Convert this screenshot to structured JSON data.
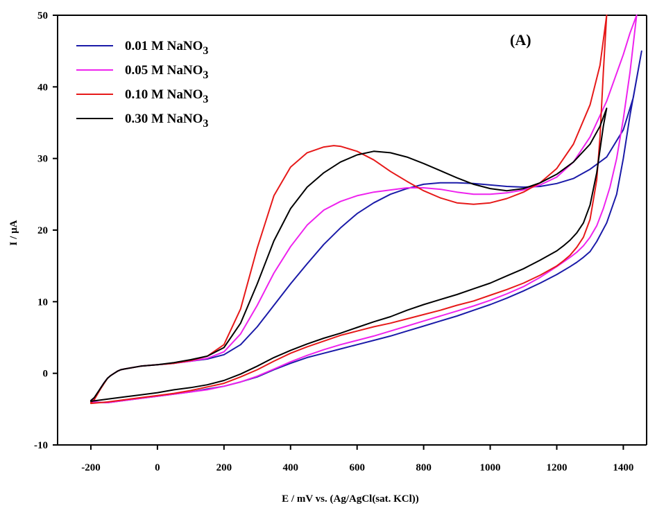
{
  "chart_data": {
    "type": "line",
    "title": "",
    "panel_label": "(A)",
    "xlabel": "E / mV vs. (Ag/AgCl(sat. KCl))",
    "ylabel": "I / µA",
    "xlim": [
      -300,
      1470
    ],
    "ylim": [
      -10,
      50
    ],
    "xticks": [
      -200,
      0,
      200,
      400,
      600,
      800,
      1000,
      1200,
      1400
    ],
    "yticks": [
      -10,
      0,
      10,
      20,
      30,
      40,
      50
    ],
    "grid": false,
    "legend_position": "top-left",
    "series": [
      {
        "name_main": "0.01 M NaNO",
        "name_sub": "3",
        "color": "#1a1aa8",
        "x": [
          -100,
          -50,
          0,
          50,
          100,
          150,
          200,
          250,
          300,
          350,
          400,
          450,
          500,
          550,
          600,
          650,
          700,
          750,
          800,
          850,
          900,
          950,
          1000,
          1050,
          1100,
          1150,
          1200,
          1250,
          1300,
          1350,
          1400,
          1430,
          1455,
          1455,
          1420,
          1400,
          1380,
          1350,
          1320,
          1300,
          1280,
          1260,
          1240,
          1200,
          1150,
          1100,
          1050,
          1000,
          950,
          900,
          850,
          800,
          750,
          700,
          650,
          600,
          550,
          500,
          450,
          400,
          350,
          300,
          250,
          200,
          150,
          100,
          50,
          0,
          -50,
          -100,
          -150,
          -200,
          -200,
          -190,
          -180,
          -170,
          -160,
          -150,
          -140,
          -130,
          -120,
          -110,
          -100
        ],
        "y": [
          0.6,
          1.0,
          1.2,
          1.4,
          1.7,
          2.0,
          2.6,
          4.0,
          6.5,
          9.5,
          12.5,
          15.3,
          18.0,
          20.3,
          22.3,
          23.8,
          25.0,
          25.8,
          26.4,
          26.6,
          26.6,
          26.5,
          26.3,
          26.1,
          26.0,
          26.1,
          26.5,
          27.2,
          28.5,
          30.2,
          34.0,
          38.5,
          45.0,
          45.0,
          36.0,
          30.0,
          25.0,
          21.0,
          18.4,
          17.0,
          16.2,
          15.5,
          14.9,
          13.8,
          12.6,
          11.5,
          10.5,
          9.6,
          8.8,
          8.0,
          7.3,
          6.6,
          5.9,
          5.2,
          4.6,
          4.0,
          3.4,
          2.8,
          2.2,
          1.4,
          0.5,
          -0.5,
          -1.2,
          -1.8,
          -2.2,
          -2.6,
          -2.9,
          -3.2,
          -3.5,
          -3.8,
          -4.1,
          -4.0,
          -4.0,
          -3.6,
          -2.8,
          -2.0,
          -1.3,
          -0.7,
          -0.3,
          0.0,
          0.3,
          0.5,
          0.6
        ]
      },
      {
        "name_main": "0.05 M NaNO",
        "name_sub": "3",
        "color": "#ee22ee",
        "x": [
          -100,
          -50,
          0,
          50,
          100,
          150,
          200,
          250,
          300,
          350,
          400,
          450,
          500,
          550,
          600,
          650,
          700,
          750,
          800,
          850,
          900,
          950,
          1000,
          1050,
          1100,
          1150,
          1200,
          1250,
          1300,
          1350,
          1400,
          1420,
          1440,
          1440,
          1420,
          1400,
          1380,
          1360,
          1340,
          1320,
          1300,
          1280,
          1260,
          1240,
          1200,
          1150,
          1100,
          1050,
          1000,
          950,
          900,
          850,
          800,
          750,
          700,
          650,
          600,
          550,
          500,
          450,
          400,
          350,
          300,
          250,
          200,
          150,
          100,
          50,
          0,
          -50,
          -100,
          -150,
          -200,
          -200,
          -190,
          -180,
          -170,
          -160,
          -150,
          -140,
          -130,
          -120,
          -110,
          -100
        ],
        "y": [
          0.6,
          1.0,
          1.2,
          1.4,
          1.7,
          2.1,
          3.0,
          5.5,
          9.5,
          14.0,
          17.7,
          20.7,
          22.8,
          24.0,
          24.8,
          25.3,
          25.6,
          25.9,
          25.9,
          25.7,
          25.3,
          25.0,
          25.0,
          25.2,
          25.6,
          26.3,
          27.4,
          29.5,
          33.0,
          38.0,
          44.5,
          47.5,
          50.0,
          50.0,
          42.0,
          35.5,
          30.0,
          26.0,
          23.0,
          20.6,
          19.0,
          17.8,
          16.9,
          16.2,
          14.9,
          13.4,
          12.1,
          11.1,
          10.2,
          9.4,
          8.7,
          8.0,
          7.3,
          6.6,
          5.9,
          5.2,
          4.6,
          4.0,
          3.3,
          2.5,
          1.6,
          0.6,
          -0.4,
          -1.2,
          -1.8,
          -2.3,
          -2.6,
          -2.9,
          -3.2,
          -3.5,
          -3.8,
          -4.1,
          -4.0,
          -4.0,
          -3.6,
          -2.8,
          -2.0,
          -1.3,
          -0.7,
          -0.3,
          0.0,
          0.3,
          0.5,
          0.6
        ]
      },
      {
        "name_main": "0.10 M NaNO",
        "name_sub": "3",
        "color": "#e61919",
        "x": [
          -100,
          -50,
          0,
          50,
          100,
          150,
          200,
          250,
          300,
          350,
          400,
          450,
          500,
          530,
          550,
          600,
          650,
          700,
          750,
          800,
          850,
          900,
          950,
          1000,
          1050,
          1100,
          1150,
          1200,
          1250,
          1300,
          1330,
          1350,
          1350,
          1340,
          1330,
          1320,
          1300,
          1280,
          1260,
          1240,
          1220,
          1200,
          1150,
          1100,
          1050,
          1000,
          950,
          900,
          850,
          800,
          750,
          700,
          650,
          600,
          550,
          500,
          450,
          400,
          350,
          300,
          250,
          200,
          150,
          100,
          50,
          0,
          -50,
          -100,
          -150,
          -200,
          -200,
          -190,
          -180,
          -170,
          -160,
          -150,
          -140,
          -130,
          -120,
          -110,
          -100
        ],
        "y": [
          0.6,
          1.0,
          1.2,
          1.4,
          1.8,
          2.4,
          4.0,
          9.0,
          17.5,
          24.8,
          28.8,
          30.8,
          31.6,
          31.8,
          31.7,
          31.0,
          29.8,
          28.2,
          26.8,
          25.5,
          24.5,
          23.8,
          23.6,
          23.8,
          24.4,
          25.3,
          26.6,
          28.6,
          32.0,
          37.5,
          43.0,
          50.0,
          50.0,
          42.0,
          33.0,
          27.0,
          21.5,
          19.0,
          17.6,
          16.5,
          15.7,
          15.0,
          13.7,
          12.6,
          11.7,
          10.9,
          10.1,
          9.5,
          8.8,
          8.2,
          7.6,
          7.0,
          6.5,
          5.9,
          5.3,
          4.5,
          3.7,
          2.8,
          1.7,
          0.5,
          -0.5,
          -1.4,
          -1.9,
          -2.4,
          -2.8,
          -3.1,
          -3.4,
          -3.7,
          -4.0,
          -4.2,
          -4.1,
          -3.7,
          -2.9,
          -2.1,
          -1.4,
          -0.7,
          -0.3,
          0.0,
          0.3,
          0.5,
          0.6
        ]
      },
      {
        "name_main": "0.30 M NaNO",
        "name_sub": "3",
        "color": "#000000",
        "x": [
          -100,
          -50,
          0,
          50,
          100,
          150,
          200,
          250,
          300,
          350,
          400,
          450,
          500,
          550,
          600,
          650,
          700,
          750,
          800,
          850,
          900,
          950,
          1000,
          1050,
          1100,
          1150,
          1200,
          1250,
          1300,
          1330,
          1350,
          1350,
          1340,
          1320,
          1300,
          1280,
          1260,
          1240,
          1220,
          1200,
          1150,
          1100,
          1050,
          1000,
          950,
          900,
          850,
          800,
          750,
          700,
          650,
          600,
          550,
          500,
          450,
          400,
          350,
          300,
          250,
          200,
          150,
          100,
          50,
          0,
          -50,
          -100,
          -150,
          -200,
          -200,
          -190,
          -180,
          -170,
          -160,
          -150,
          -140,
          -130,
          -120,
          -110,
          -100
        ],
        "y": [
          0.6,
          1.0,
          1.2,
          1.5,
          1.9,
          2.4,
          3.6,
          7.0,
          12.5,
          18.5,
          23.0,
          26.0,
          28.0,
          29.5,
          30.5,
          31.0,
          30.8,
          30.2,
          29.3,
          28.3,
          27.3,
          26.4,
          25.8,
          25.5,
          25.8,
          26.6,
          27.8,
          29.5,
          32.0,
          34.5,
          37.0,
          37.0,
          34.5,
          28.0,
          23.5,
          21.0,
          19.6,
          18.6,
          17.8,
          17.1,
          15.8,
          14.6,
          13.6,
          12.6,
          11.8,
          11.0,
          10.3,
          9.6,
          8.8,
          7.9,
          7.2,
          6.4,
          5.6,
          4.9,
          4.1,
          3.2,
          2.2,
          1.0,
          -0.1,
          -1.0,
          -1.6,
          -2.0,
          -2.3,
          -2.7,
          -3.0,
          -3.3,
          -3.6,
          -3.9,
          -3.8,
          -3.4,
          -2.7,
          -2.0,
          -1.3,
          -0.7,
          -0.3,
          0.0,
          0.3,
          0.5,
          0.6
        ]
      }
    ]
  }
}
